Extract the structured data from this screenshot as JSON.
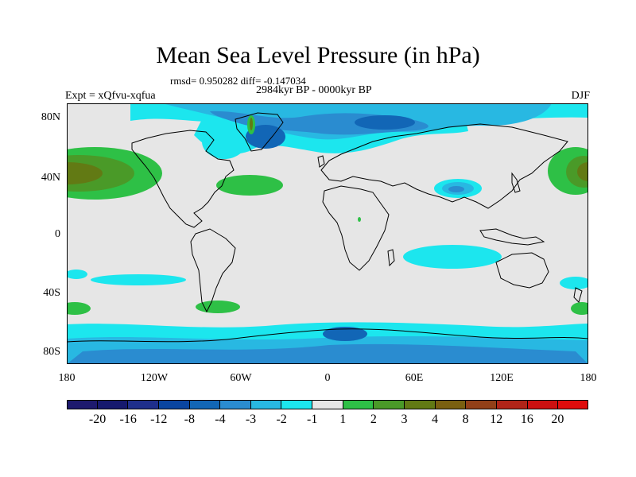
{
  "title": "Mean Sea Level Pressure (in hPa)",
  "stats": "rmsd= 0.950282 diff= -0.147034",
  "period": "2984kyr BP - 0000kyr BP",
  "experiment": "Expt = xQfvu-xqfua",
  "season": "DJF",
  "lat_labels": [
    "80N",
    "40N",
    "0",
    "40S",
    "80S"
  ],
  "lon_labels": [
    "180",
    "120W",
    "60W",
    "0",
    "60E",
    "120E",
    "180"
  ],
  "colorbar": {
    "colors": [
      "#1e1a6e",
      "#16196e",
      "#1f2f8c",
      "#0a45a0",
      "#1266b6",
      "#2a8cd0",
      "#28b8e2",
      "#1ce6ee",
      "#e6e6e6",
      "#2ec046",
      "#4a9a28",
      "#627a14",
      "#7a6010",
      "#924018",
      "#b02418",
      "#cc1010",
      "#e00c0c"
    ],
    "labels": [
      "-20",
      "-16",
      "-12",
      "-8",
      "-4",
      "-3",
      "-2",
      "-1",
      "1",
      "2",
      "3",
      "4",
      "8",
      "12",
      "16",
      "20"
    ]
  },
  "map_colors": {
    "background": "#e6e6e6",
    "cyan": "#1ce6ee",
    "light_blue": "#28b8e2",
    "blue": "#2a8cd0",
    "mid_blue": "#1266b6",
    "dark_blue": "#0a45a0",
    "green": "#2ec046",
    "dark_green": "#4a9a28",
    "olive": "#627a14",
    "coast": "#000000"
  }
}
